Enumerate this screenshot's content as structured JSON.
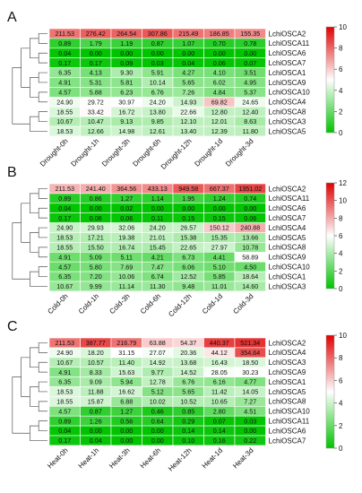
{
  "colors": {
    "low": "#00c400",
    "mid": "#ffffff",
    "high": "#e00000"
  },
  "chart_data": [
    {
      "type": "heatmap",
      "panel": "A",
      "columns": [
        "Drought-0h",
        "Drought-1h",
        "Drought-3h",
        "Drought-6h",
        "Drought-12h",
        "Drought-1d",
        "Drought-3d"
      ],
      "rows": [
        "LchiOSCA2",
        "LchiOSCA11",
        "LchiOSCA6",
        "LchiOSCA7",
        "LchiOSCA1",
        "LchiOSCA9",
        "LchiOSCA10",
        "LchiOSCA4",
        "LchiOSCA8",
        "LchiOSCA3",
        "LchiOSCA5"
      ],
      "values": [
        [
          211.53,
          276.42,
          264.54,
          307.86,
          215.49,
          186.85,
          155.35
        ],
        [
          0.89,
          1.79,
          1.19,
          0.87,
          1.07,
          0.7,
          0.78
        ],
        [
          0.04,
          0.0,
          0.0,
          0.0,
          0.0,
          0.0,
          0.0
        ],
        [
          0.17,
          0.17,
          0.09,
          0.03,
          0.04,
          0.06,
          0.07
        ],
        [
          6.35,
          4.13,
          9.3,
          5.91,
          4.27,
          4.1,
          3.51
        ],
        [
          4.91,
          5.31,
          5.81,
          10.14,
          5.65,
          6.02,
          4.95
        ],
        [
          4.57,
          5.88,
          6.23,
          6.76,
          7.26,
          4.84,
          5.37
        ],
        [
          24.9,
          29.72,
          30.97,
          24.2,
          14.93,
          69.82,
          24.65
        ],
        [
          18.55,
          33.42,
          16.72,
          13.8,
          22.66,
          12.8,
          12.4
        ],
        [
          10.67,
          10.47,
          9.13,
          9.85,
          12.1,
          12.01,
          8.63
        ],
        [
          18.53,
          12.66,
          14.98,
          12.61,
          13.4,
          12.39,
          11.8
        ]
      ],
      "colorbar_ticks": [
        0,
        2,
        4,
        6,
        8,
        10
      ],
      "range": [
        0,
        10
      ]
    },
    {
      "type": "heatmap",
      "panel": "B",
      "columns": [
        "Cold-0h",
        "Cold-1h",
        "Cold-3h",
        "Cold-6h",
        "Cold-12h",
        "Cold-1d",
        "Cold-3d"
      ],
      "rows": [
        "LchiOSCA2",
        "LchiOSCA11",
        "LchiOSCA6",
        "LchiOSCA7",
        "LchiOSCA4",
        "LchiOSCA5",
        "LchiOSCA8",
        "LchiOSCA9",
        "LchiOSCA10",
        "LchiOSCA1",
        "LchiOSCA3"
      ],
      "values": [
        [
          211.53,
          241.4,
          364.56,
          433.13,
          949.58,
          667.37,
          1351.02
        ],
        [
          0.89,
          0.86,
          1.27,
          1.14,
          1.95,
          1.24,
          0.74
        ],
        [
          0.04,
          0.0,
          0.02,
          0.0,
          0.0,
          0.0,
          0.0
        ],
        [
          0.17,
          0.06,
          0.06,
          0.11,
          0.15,
          0.15,
          0.06
        ],
        [
          24.9,
          29.93,
          32.06,
          24.2,
          26.57,
          150.12,
          240.88
        ],
        [
          18.53,
          17.21,
          19.38,
          21.01,
          15.38,
          15.35,
          13.66
        ],
        [
          18.55,
          15.5,
          16.74,
          15.45,
          22.65,
          27.97,
          10.78
        ],
        [
          4.91,
          5.09,
          5.11,
          4.21,
          6.73,
          4.41,
          58.89
        ],
        [
          4.57,
          5.8,
          7.69,
          7.47,
          6.06,
          5.1,
          4.5
        ],
        [
          6.35,
          7.2,
          10.06,
          6.74,
          12.52,
          5.85,
          18.64
        ],
        [
          10.67,
          9.99,
          11.14,
          11.3,
          9.48,
          11.01,
          14.6
        ]
      ],
      "colorbar_ticks": [
        0,
        2,
        4,
        6,
        8,
        10,
        12
      ],
      "range": [
        0,
        12
      ]
    },
    {
      "type": "heatmap",
      "panel": "C",
      "columns": [
        "Heat-0h",
        "Heat-1h",
        "Heat-3h",
        "Heat-6h",
        "Heat-12h",
        "Heat-1d",
        "Heat-3d"
      ],
      "rows": [
        "LchiOSCA2",
        "LchiOSCA4",
        "LchiOSCA3",
        "LchiOSCA9",
        "LchiOSCA1",
        "LchiOSCA5",
        "LchiOSCA8",
        "LchiOSCA10",
        "LchiOSCA11",
        "LchiOSCA6",
        "LchiOSCA7"
      ],
      "values": [
        [
          211.53,
          387.77,
          216.79,
          63.88,
          54.37,
          440.37,
          521.34
        ],
        [
          24.9,
          18.2,
          31.15,
          27.07,
          20.36,
          44.12,
          354.64
        ],
        [
          10.67,
          10.57,
          11.4,
          14.92,
          13.68,
          16.43,
          18.5
        ],
        [
          4.91,
          8.33,
          15.63,
          9.77,
          14.52,
          28.05,
          30.23
        ],
        [
          6.35,
          9.09,
          5.94,
          12.78,
          6.76,
          6.16,
          4.77
        ],
        [
          18.53,
          11.88,
          16.62,
          5.12,
          5.65,
          11.42,
          14.05
        ],
        [
          18.55,
          15.87,
          6.88,
          10.02,
          10.52,
          10.65,
          7.27
        ],
        [
          4.57,
          0.87,
          1.27,
          0.46,
          0.85,
          2.8,
          4.51
        ],
        [
          0.89,
          1.26,
          0.56,
          0.64,
          0.29,
          0.07,
          0.03
        ],
        [
          0.04,
          0.0,
          0.0,
          0.0,
          0.14,
          0.14,
          0.0
        ],
        [
          0.17,
          0.04,
          0.0,
          0.0,
          0.1,
          0.16,
          0.22
        ]
      ],
      "colorbar_ticks": [
        0,
        2,
        4,
        6,
        8,
        10
      ],
      "range": [
        0,
        10
      ]
    }
  ]
}
